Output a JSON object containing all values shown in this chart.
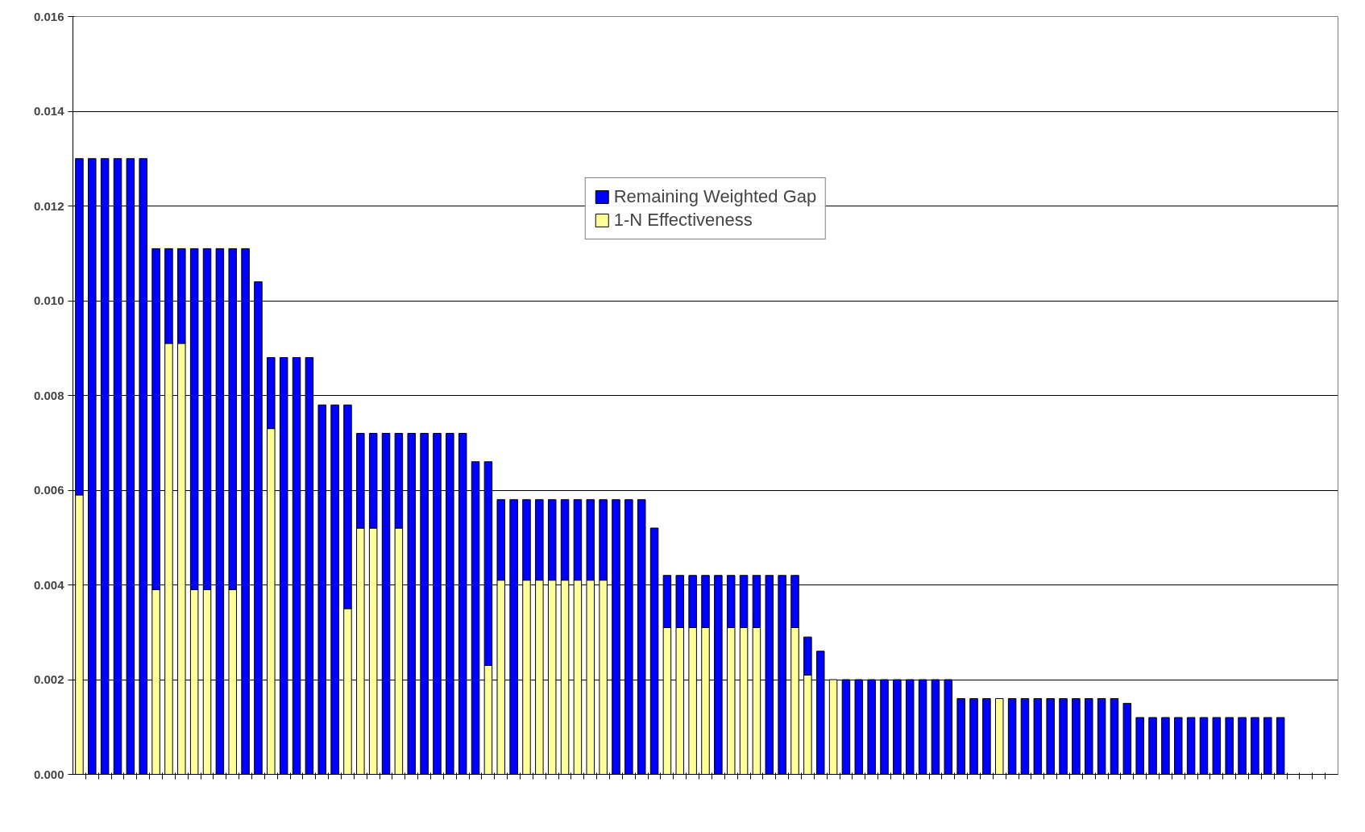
{
  "chart_data": {
    "type": "bar",
    "stacked": true,
    "categories": [
      null,
      null,
      null,
      null,
      null,
      null,
      null,
      null,
      null,
      null,
      null,
      null,
      null,
      null,
      null,
      null,
      null,
      null,
      null,
      null,
      null,
      null,
      null,
      null,
      null,
      null,
      null,
      null,
      null,
      null,
      null,
      null,
      null,
      null,
      null,
      null,
      null,
      null,
      null,
      null,
      null,
      null,
      null,
      null,
      null,
      null,
      null,
      null,
      null,
      null,
      null,
      null,
      null,
      null,
      null,
      null,
      null,
      null,
      null,
      null,
      null,
      null,
      null,
      null,
      null,
      null,
      null,
      null,
      null,
      null,
      null,
      null,
      null,
      null,
      null,
      null,
      null,
      null,
      null,
      null,
      null,
      null,
      null,
      null,
      null,
      null,
      null,
      null,
      null,
      null,
      null,
      null,
      null,
      null,
      null,
      null,
      null,
      null,
      null
    ],
    "series": [
      {
        "name": "1-N Effectiveness",
        "color": "#ffff99",
        "values": [
          0.0059,
          0,
          0,
          0,
          0,
          0,
          0.0039,
          0.0091,
          0.0091,
          0.0039,
          0.0039,
          0,
          0.0039,
          0,
          0,
          0.0073,
          0,
          0,
          0,
          0,
          0,
          0.0035,
          0.0052,
          0.0052,
          0,
          0.0052,
          0,
          0,
          0,
          0,
          0,
          0,
          0.0023,
          0.0041,
          0,
          0.0041,
          0.0041,
          0.0041,
          0.0041,
          0.0041,
          0.0041,
          0.0041,
          0,
          0,
          0,
          0,
          0.0031,
          0.0031,
          0.0031,
          0.0031,
          0,
          0.0031,
          0.0031,
          0.0031,
          0,
          0,
          0.0031,
          0.0021,
          0,
          0.002,
          0,
          0,
          0,
          0,
          0,
          0,
          0,
          0,
          0,
          0,
          0,
          0,
          0.0016,
          0,
          0,
          0,
          0,
          0,
          0,
          0,
          0,
          0,
          0,
          0,
          0,
          0,
          0,
          0,
          0,
          0,
          0,
          0,
          0,
          0,
          0,
          null,
          null,
          null,
          null
        ]
      },
      {
        "name": "Remaining Weighted Gap",
        "color": "#0000ff",
        "values": [
          0.0071,
          0.013,
          0.013,
          0.013,
          0.013,
          0.013,
          0.0072,
          0.002,
          0.002,
          0.0072,
          0.0072,
          0.0111,
          0.0072,
          0.0111,
          0.0104,
          0.0015,
          0.0088,
          0.0088,
          0.0088,
          0.0078,
          0.0078,
          0.0043,
          0.002,
          0.002,
          0.0072,
          0.002,
          0.0072,
          0.0072,
          0.0072,
          0.0072,
          0.0072,
          0.0066,
          0.0043,
          0.0017,
          0.0058,
          0.0017,
          0.0017,
          0.0017,
          0.0017,
          0.0017,
          0.0017,
          0.0017,
          0.0058,
          0.0058,
          0.0058,
          0.0052,
          0.0011,
          0.0011,
          0.0011,
          0.0011,
          0.0042,
          0.0011,
          0.0011,
          0.0011,
          0.0042,
          0.0042,
          0.0011,
          0.0008,
          0.0026,
          0,
          0.002,
          0.002,
          0.002,
          0.002,
          0.002,
          0.002,
          0.002,
          0.002,
          0.002,
          0.0016,
          0.0016,
          0.0016,
          0,
          0.0016,
          0.0016,
          0.0016,
          0.0016,
          0.0016,
          0.0016,
          0.0016,
          0.0016,
          0.0016,
          0.0015,
          0.0012,
          0.0012,
          0.0012,
          0.0012,
          0.0012,
          0.0012,
          0.0012,
          0.0012,
          0.0012,
          0.0012,
          0.0012,
          0.0012,
          null,
          null,
          null,
          null
        ]
      }
    ],
    "ylim": [
      0,
      0.016
    ],
    "yticks": [
      {
        "value": 0,
        "label": "0.000"
      },
      {
        "value": 0.002,
        "label": "0.002"
      },
      {
        "value": 0.004,
        "label": "0.004"
      },
      {
        "value": 0.006,
        "label": "0.006"
      },
      {
        "value": 0.008,
        "label": "0.008"
      },
      {
        "value": 0.01,
        "label": "0.010"
      },
      {
        "value": 0.012,
        "label": "0.012"
      },
      {
        "value": 0.014,
        "label": "0.014"
      },
      {
        "value": 0.016,
        "label": "0.016"
      }
    ],
    "grid": "y",
    "legend": "top",
    "tick_labels": "y"
  }
}
